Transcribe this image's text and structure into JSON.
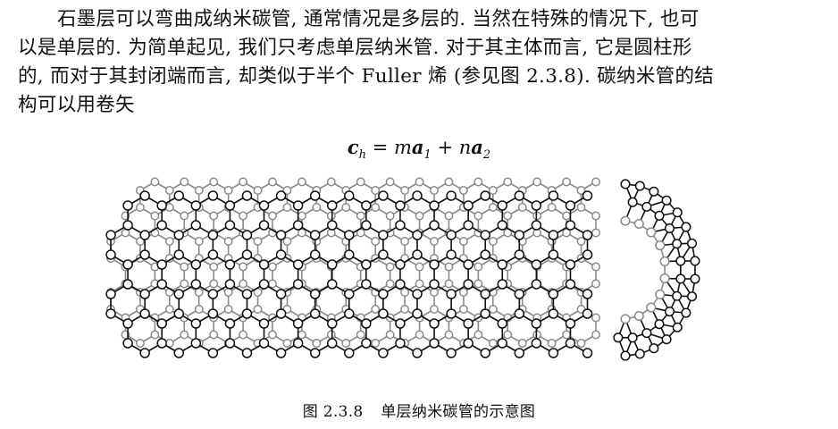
{
  "paragraph": {
    "lines": [
      "石墨层可以弯曲成纳米碳管, 通常情况是多层的. 当然在特殊的情况下, 也可",
      "以是单层的. 为简单起见, 我们只考虑单层纳米管. 对于其主体而言, 它是圆柱形",
      "的, 而对于其封闭端而言, 却类似于半个 Fuller 烯 (参见图 2.3.8). 碳纳米管的结",
      "构可以用卷矢"
    ]
  },
  "formula": {
    "text": "c_h = m a_1 + n a_2"
  },
  "figure": {
    "caption_number": "图 2.3.8",
    "caption_text": "单层纳米碳管的示意图"
  },
  "colors": {
    "front_lattice": "#111111",
    "back_lattice": "#8a8a8a",
    "atom_fill": "#ffffff"
  }
}
